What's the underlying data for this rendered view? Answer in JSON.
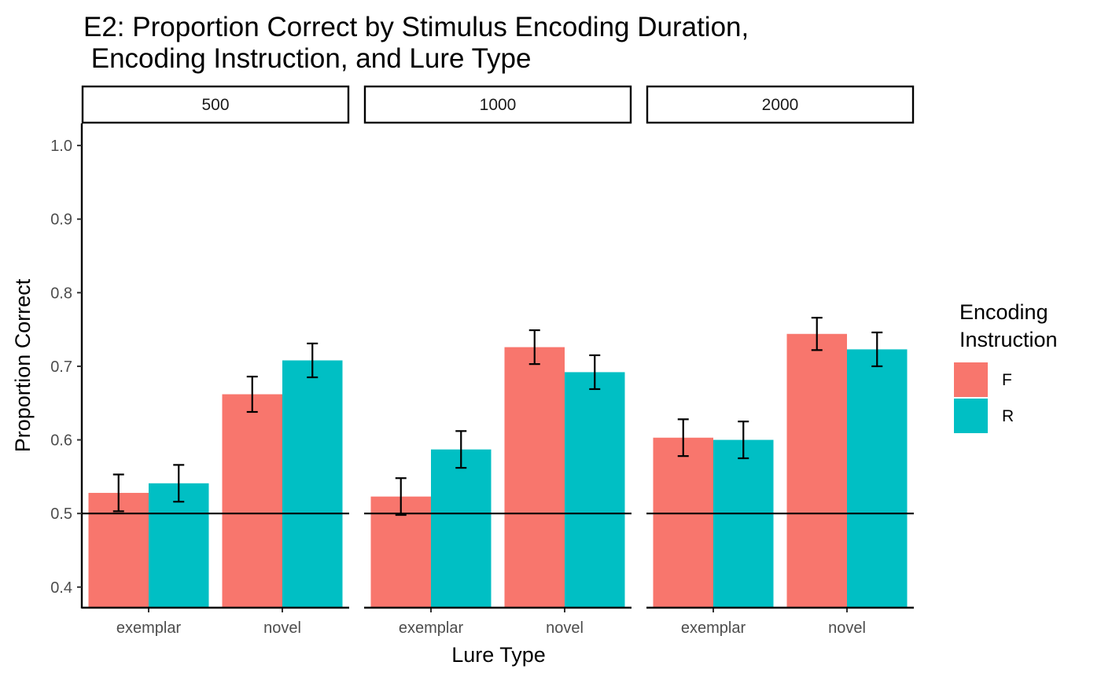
{
  "chart_data": {
    "type": "bar",
    "title": "E2: Proportion Correct by Stimulus Encoding Duration,",
    "subtitle": " Encoding Instruction, and Lure Type",
    "xlabel": "Lure Type",
    "ylabel": "Proportion Correct",
    "ylim": [
      0.372,
      1.03
    ],
    "yticks": [
      0.4,
      0.5,
      0.6,
      0.7,
      0.8,
      0.9,
      1.0
    ],
    "ytick_labels": [
      "0.4",
      "0.5",
      "0.6",
      "0.7",
      "0.8",
      "0.9",
      "1.0"
    ],
    "reference_line": 0.5,
    "categories": [
      "exemplar",
      "novel"
    ],
    "legend": {
      "title_lines": [
        "Encoding",
        "Instruction"
      ],
      "placement": "right"
    },
    "colors": {
      "F": "#F8766D",
      "R": "#00BFC4",
      "line": "#000000"
    },
    "panels": [
      {
        "label": "500",
        "series": [
          {
            "name": "F",
            "values": [
              0.528,
              0.662
            ],
            "err_low": [
              0.503,
              0.638
            ],
            "err_high": [
              0.553,
              0.686
            ]
          },
          {
            "name": "R",
            "values": [
              0.541,
              0.708
            ],
            "err_low": [
              0.516,
              0.685
            ],
            "err_high": [
              0.566,
              0.731
            ]
          }
        ]
      },
      {
        "label": "1000",
        "series": [
          {
            "name": "F",
            "values": [
              0.523,
              0.726
            ],
            "err_low": [
              0.498,
              0.703
            ],
            "err_high": [
              0.548,
              0.749
            ]
          },
          {
            "name": "R",
            "values": [
              0.587,
              0.692
            ],
            "err_low": [
              0.562,
              0.669
            ],
            "err_high": [
              0.612,
              0.715
            ]
          }
        ]
      },
      {
        "label": "2000",
        "series": [
          {
            "name": "F",
            "values": [
              0.603,
              0.744
            ],
            "err_low": [
              0.578,
              0.722
            ],
            "err_high": [
              0.628,
              0.766
            ]
          },
          {
            "name": "R",
            "values": [
              0.6,
              0.723
            ],
            "err_low": [
              0.575,
              0.7
            ],
            "err_high": [
              0.625,
              0.746
            ]
          }
        ]
      }
    ]
  }
}
